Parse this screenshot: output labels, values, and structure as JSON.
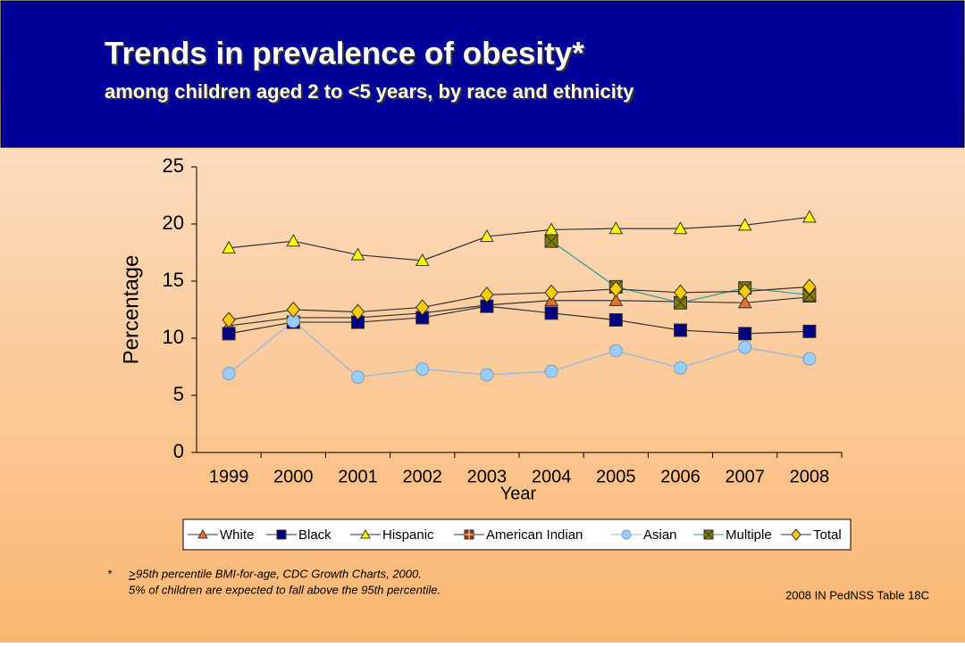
{
  "header": {
    "title": "Trends in prevalence of obesity*",
    "subtitle": "among children aged 2 to <5 years, by race and ethnicity"
  },
  "chart_data": {
    "type": "line",
    "categories": [
      "1999",
      "2000",
      "2001",
      "2002",
      "2003",
      "2004",
      "2005",
      "2006",
      "2007",
      "2008"
    ],
    "x_label": "Year",
    "y_label": "Percentage",
    "ylim": [
      0,
      25
    ],
    "yticks": [
      0,
      5,
      10,
      15,
      20,
      25
    ],
    "series": [
      {
        "name": "White",
        "color": "#e8702a",
        "line_color": "#333333",
        "marker": "triangle",
        "values": [
          11.1,
          11.8,
          11.8,
          12.2,
          12.9,
          13.3,
          13.3,
          13.2,
          13.1,
          13.6
        ]
      },
      {
        "name": "Black",
        "color": "#000080",
        "line_color": "#333333",
        "marker": "square",
        "values": [
          10.4,
          11.4,
          11.4,
          11.8,
          12.8,
          12.2,
          11.6,
          10.7,
          10.4,
          10.6
        ]
      },
      {
        "name": "Hispanic",
        "color": "#ffff00",
        "line_color": "#333333",
        "marker": "triangle",
        "values": [
          17.9,
          18.5,
          17.3,
          16.8,
          18.9,
          19.5,
          19.6,
          19.6,
          19.9,
          20.6
        ]
      },
      {
        "name": "American Indian",
        "color": "#993300",
        "line_color": "#333333",
        "marker": "plus-square",
        "values": [
          null,
          null,
          null,
          null,
          null,
          null,
          null,
          null,
          null,
          null
        ]
      },
      {
        "name": "Asian",
        "color": "#99ccff",
        "line_color": "#8fb8e8",
        "marker": "circle",
        "values": [
          6.9,
          11.5,
          6.6,
          7.3,
          6.8,
          7.1,
          8.9,
          7.4,
          9.2,
          8.2
        ]
      },
      {
        "name": "Multiple",
        "color": "#808000",
        "line_color": "#2e9a9a",
        "marker": "x-square",
        "values": [
          null,
          null,
          null,
          null,
          null,
          18.5,
          14.5,
          13.1,
          14.4,
          13.8
        ]
      },
      {
        "name": "Total",
        "color": "#ffcc00",
        "line_color": "#333333",
        "marker": "diamond",
        "values": [
          11.6,
          12.5,
          12.3,
          12.7,
          13.8,
          14.0,
          14.3,
          14.0,
          14.1,
          14.5
        ]
      }
    ]
  },
  "footnote": {
    "star": "*",
    "symbol": ">",
    "line1": " 95th percentile BMI-for-age, CDC Growth Charts, 2000.",
    "line2": "5% of children are expected to fall above the 95th percentile."
  },
  "source": "2008 IN PedNSS Table 18C"
}
